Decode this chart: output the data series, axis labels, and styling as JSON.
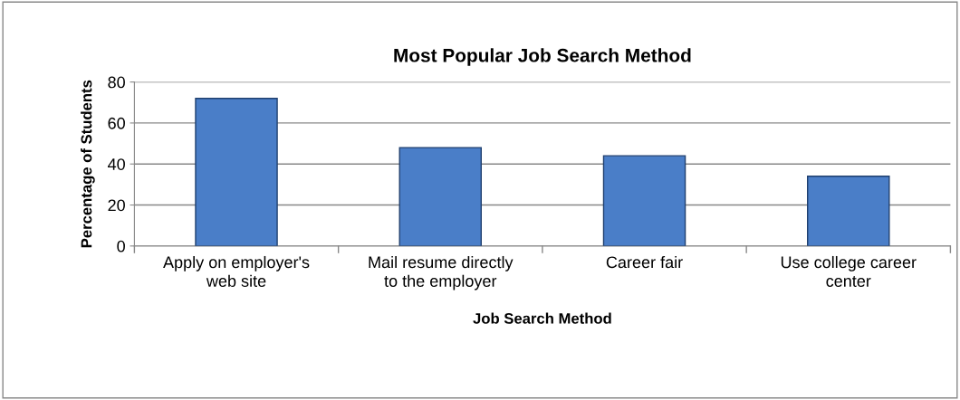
{
  "chart_data": {
    "type": "bar",
    "title": "Most Popular Job Search Method",
    "xlabel": "Job Search Method",
    "ylabel": "Percentage of Students",
    "categories": [
      "Apply on employer's web site",
      "Mail resume directly to the employer",
      "Career fair",
      "Use college career center"
    ],
    "values": [
      72,
      48,
      44,
      34
    ],
    "color": "#4a7ec8",
    "ylim": [
      0,
      80
    ],
    "yticks": [
      0,
      20,
      40,
      60,
      80
    ],
    "grid": "y",
    "legend": false
  }
}
